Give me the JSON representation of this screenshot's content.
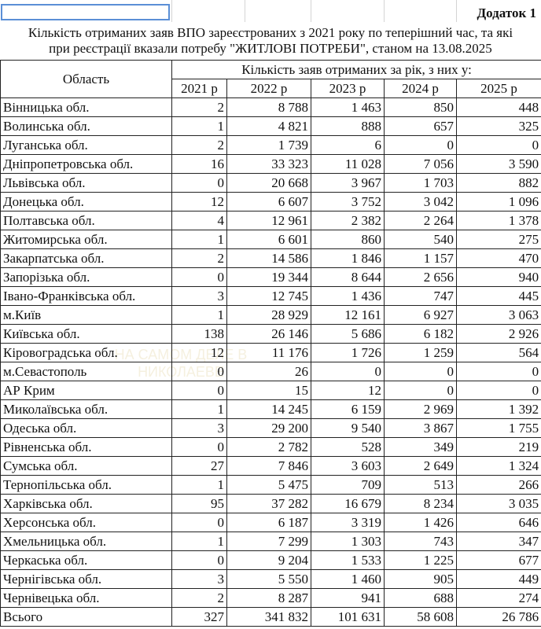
{
  "appendix_label": "Додаток 1",
  "title_line1": "Кількість отриманих заяв ВПО зареєстрованих з 2021 року по теперішний час, та які",
  "title_line2": "при реєстрації вказали потребу \"ЖИТЛОВІ ПОТРЕБИ\", станом на 13.08.2025",
  "table": {
    "region_header": "Область",
    "group_header": "Кількість заяв отриманих за рік, з них у:",
    "years": [
      "2021 р",
      "2022 р",
      "2023 р",
      "2024 р",
      "2025 р"
    ],
    "rows": [
      {
        "region": "Вінницька обл.",
        "values": [
          "2",
          "8 788",
          "1 463",
          "850",
          "448"
        ]
      },
      {
        "region": "Волинська обл.",
        "values": [
          "1",
          "4 821",
          "888",
          "657",
          "325"
        ]
      },
      {
        "region": "Луганська обл.",
        "values": [
          "2",
          "1 739",
          "6",
          "0",
          "0"
        ]
      },
      {
        "region": "Дніпропетровська обл.",
        "values": [
          "16",
          "33 323",
          "11 028",
          "7 056",
          "3 590"
        ]
      },
      {
        "region": "Львівська обл.",
        "values": [
          "0",
          "20 668",
          "3 967",
          "1 703",
          "882"
        ]
      },
      {
        "region": "Донецька обл.",
        "values": [
          "12",
          "6 607",
          "3 752",
          "3 042",
          "1 096"
        ]
      },
      {
        "region": "Полтавська обл.",
        "values": [
          "4",
          "12 961",
          "2 382",
          "2 264",
          "1 378"
        ]
      },
      {
        "region": "Житомирська обл.",
        "values": [
          "1",
          "6 601",
          "860",
          "540",
          "275"
        ]
      },
      {
        "region": "Закарпатська обл.",
        "values": [
          "2",
          "14 586",
          "1 846",
          "1 157",
          "470"
        ]
      },
      {
        "region": "Запорізька обл.",
        "values": [
          "0",
          "19 344",
          "8 644",
          "2 656",
          "940"
        ]
      },
      {
        "region": "Івано-Франківська обл.",
        "values": [
          "3",
          "12 745",
          "1 436",
          "747",
          "445"
        ]
      },
      {
        "region": "м.Київ",
        "values": [
          "1",
          "28 929",
          "12 161",
          "6 927",
          "3 063"
        ]
      },
      {
        "region": "Київська обл.",
        "values": [
          "138",
          "26 146",
          "5 686",
          "6 182",
          "2 926"
        ]
      },
      {
        "region": "Кіровоградська обл.",
        "values": [
          "12",
          "11 176",
          "1 726",
          "1 259",
          "564"
        ]
      },
      {
        "region": "м.Севастополь",
        "values": [
          "0",
          "26",
          "0",
          "0",
          "0"
        ]
      },
      {
        "region": "АР Крим",
        "values": [
          "0",
          "15",
          "12",
          "0",
          "0"
        ]
      },
      {
        "region": "Миколаївська обл.",
        "values": [
          "1",
          "14 245",
          "6 159",
          "2 969",
          "1 392"
        ]
      },
      {
        "region": "Одеська обл.",
        "values": [
          "3",
          "29 200",
          "9 540",
          "3 867",
          "1 755"
        ]
      },
      {
        "region": "Рівненська обл.",
        "values": [
          "0",
          "2 782",
          "528",
          "349",
          "219"
        ]
      },
      {
        "region": "Сумська обл.",
        "values": [
          "27",
          "7 846",
          "3 603",
          "2 649",
          "1 324"
        ]
      },
      {
        "region": "Тернопільська обл.",
        "values": [
          "1",
          "5 475",
          "709",
          "513",
          "266"
        ]
      },
      {
        "region": "Харківська обл.",
        "values": [
          "95",
          "37 282",
          "16 679",
          "8 234",
          "3 035"
        ]
      },
      {
        "region": "Херсонська обл.",
        "values": [
          "0",
          "6 187",
          "3 319",
          "1 426",
          "646"
        ]
      },
      {
        "region": "Хмельницька обл.",
        "values": [
          "1",
          "7 299",
          "1 303",
          "743",
          "347"
        ]
      },
      {
        "region": "Черкаська обл.",
        "values": [
          "0",
          "9 204",
          "1 533",
          "1 225",
          "677"
        ]
      },
      {
        "region": "Чернігівська обл.",
        "values": [
          "3",
          "5 550",
          "1 460",
          "905",
          "449"
        ]
      },
      {
        "region": "Чернівецька обл.",
        "values": [
          "2",
          "8 287",
          "941",
          "688",
          "274"
        ]
      }
    ],
    "total": {
      "region": "Всього",
      "values": [
        "327",
        "341 832",
        "101 631",
        "58 608",
        "26 786"
      ]
    }
  },
  "watermark_text": "НА САМОМ ДЕЛЕ В НИКОЛАЕВЕ"
}
